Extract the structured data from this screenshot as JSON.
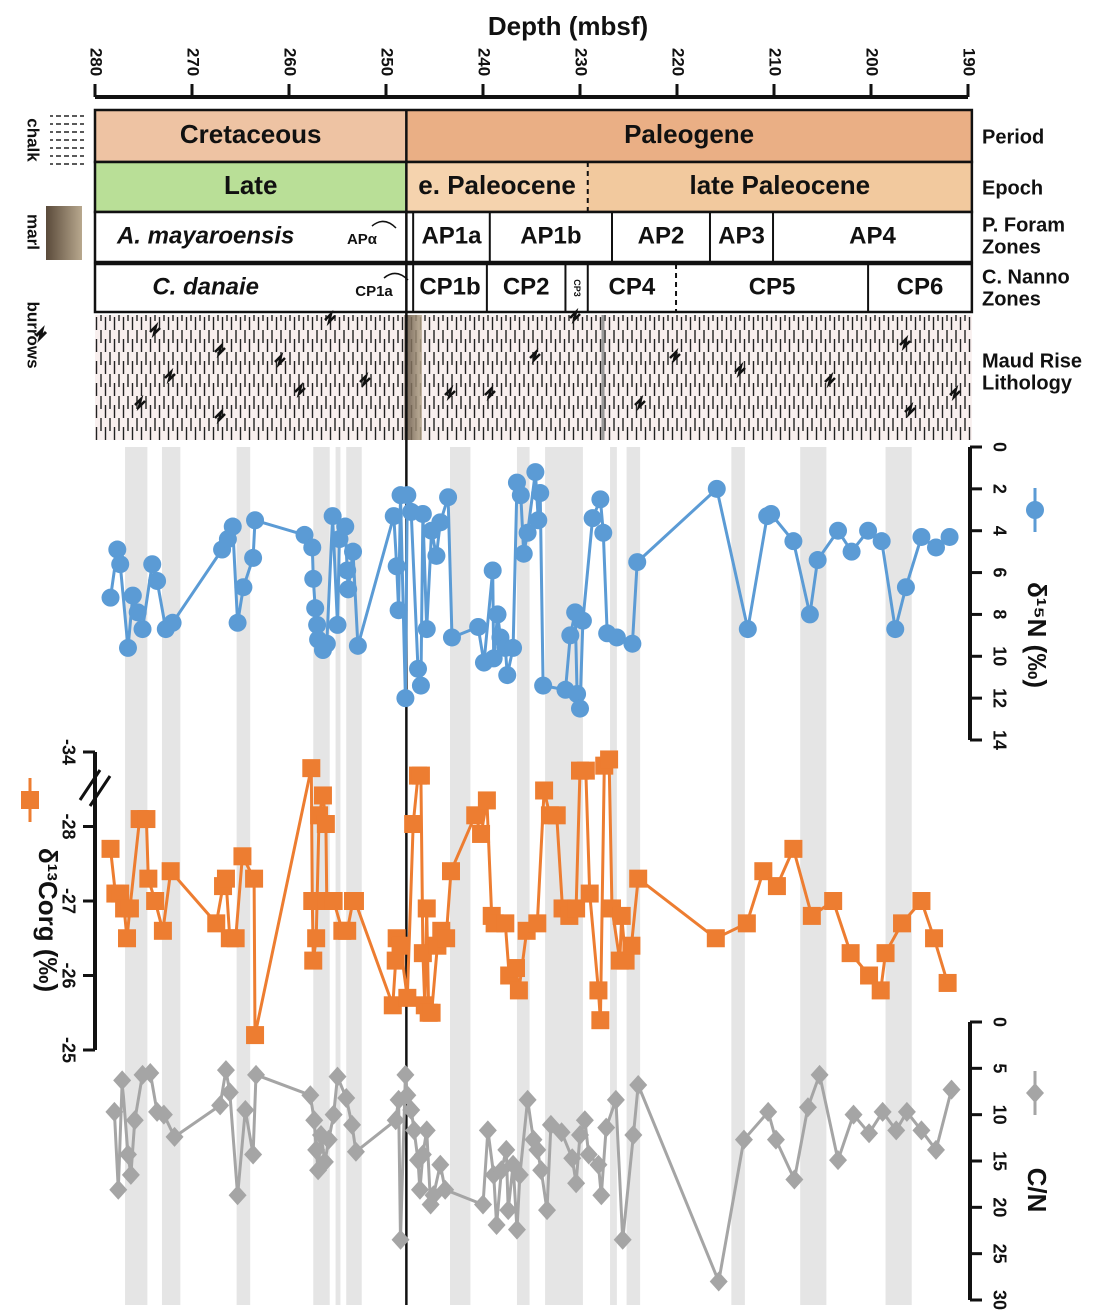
{
  "chart_data": {
    "type": "line",
    "xlabel": "Depth (mbsf)",
    "xlim": [
      280,
      190
    ],
    "xticks": [
      280,
      270,
      260,
      250,
      240,
      230,
      220,
      210,
      200,
      190
    ],
    "kpg_boundary": 247.9,
    "bands": [
      [
        276.9,
        274.6
      ],
      [
        273.1,
        271.2
      ],
      [
        265.4,
        264.0
      ],
      [
        257.5,
        255.8
      ],
      [
        255.2,
        254.7
      ],
      [
        254.1,
        252.5
      ],
      [
        243.4,
        241.3
      ],
      [
        236.5,
        235.2
      ],
      [
        233.6,
        229.7
      ],
      [
        226.9,
        226.2
      ],
      [
        225.2,
        223.8
      ],
      [
        214.4,
        213.0
      ],
      [
        207.3,
        204.6
      ],
      [
        198.5,
        195.8
      ]
    ],
    "lithology_key": [
      "chalk",
      "marl",
      "burrows"
    ],
    "strat_rows": [
      {
        "label": [
          "Period"
        ],
        "zones": [
          {
            "label": "Cretaceous",
            "from": 280,
            "to": 247.9,
            "color": "#eec3a3"
          },
          {
            "label": "Paleogene",
            "from": 247.9,
            "to": 189.6,
            "color": "#eaaf85"
          }
        ]
      },
      {
        "label": [
          "Epoch"
        ],
        "zones": [
          {
            "label": "Late",
            "from": 280,
            "to": 247.9,
            "color": "#b9df97"
          },
          {
            "label": "e. Paleocene",
            "from": 247.9,
            "to": 229.2,
            "color": "#f5d3ae"
          },
          {
            "label": "late Paleocene",
            "from": 229.2,
            "to": 189.6,
            "color": "#f2c99e",
            "dashed": true
          }
        ]
      },
      {
        "label": [
          "P. Foram",
          "Zones"
        ],
        "zones": [
          {
            "label": "A. mayaroensis",
            "from": 280,
            "to": 247.9,
            "italic": true
          },
          {
            "label": "AP1a",
            "from": 247.2,
            "to": 239.3
          },
          {
            "label": "AP1b",
            "from": 239.3,
            "to": 226.7
          },
          {
            "label": "AP2",
            "from": 226.7,
            "to": 216.6
          },
          {
            "label": "AP3",
            "from": 216.6,
            "to": 210.1
          },
          {
            "label": "AP4",
            "from": 210.1,
            "to": 189.6
          }
        ]
      },
      {
        "label": [
          "C. Nanno",
          "Zones"
        ],
        "zones": [
          {
            "label": "C. danaie",
            "from": 280,
            "to": 247.9,
            "italic": true
          },
          {
            "label": "CP1b",
            "from": 247.2,
            "to": 239.6
          },
          {
            "label": "CP2",
            "from": 239.6,
            "to": 231.5
          },
          {
            "label": "CP3",
            "from": 231.5,
            "to": 229.2,
            "small": true
          },
          {
            "label": "CP4",
            "from": 229.2,
            "to": 220.1
          },
          {
            "label": "CP5",
            "from": 220.1,
            "to": 200.3,
            "dashed": true
          },
          {
            "label": "CP6",
            "from": 200.3,
            "to": 189.6
          }
        ]
      }
    ],
    "strat_annotations": [
      "APα",
      "CP1a"
    ],
    "lithology": {
      "label": [
        "Maud Rise",
        "Lithology"
      ],
      "marl": [
        248.1,
        246.3
      ]
    },
    "series": [
      {
        "name": "δ¹⁵N (‰)",
        "color": "#5b9bd5",
        "marker": "circle",
        "ylim": [
          0,
          14
        ],
        "yticks": [
          0,
          2,
          4,
          6,
          8,
          10,
          12,
          14
        ],
        "x": [
          278.4,
          277.7,
          277.4,
          276.6,
          276.1,
          275.6,
          275.1,
          274.1,
          273.6,
          272.7,
          272.0,
          266.9,
          266.3,
          265.8,
          265.3,
          264.7,
          263.7,
          263.5,
          258.4,
          257.6,
          257.5,
          257.3,
          257.1,
          257.0,
          256.5,
          256.1,
          255.5,
          255.0,
          254.8,
          254.2,
          254.0,
          253.9,
          253.4,
          252.9,
          249.2,
          248.9,
          248.7,
          248.5,
          248.0,
          247.8,
          247.4,
          246.7,
          246.4,
          246.2,
          245.8,
          245.3,
          244.8,
          244.4,
          243.6,
          243.2,
          240.5,
          239.9,
          239.0,
          238.9,
          238.5,
          238.2,
          237.7,
          237.5,
          236.9,
          236.5,
          236.1,
          235.8,
          235.4,
          234.6,
          234.3,
          234.1,
          233.8,
          231.5,
          231.0,
          230.5,
          230.3,
          230.0,
          229.7,
          228.7,
          227.9,
          227.6,
          227.2,
          226.2,
          224.6,
          224.1,
          215.9,
          212.7,
          210.7,
          210.3,
          208.0,
          206.3,
          205.5,
          203.4,
          202.0,
          200.3,
          198.9,
          197.5,
          196.4,
          194.8,
          193.3,
          191.9
        ],
        "values": [
          7.2,
          4.9,
          5.6,
          9.6,
          7.1,
          7.9,
          8.7,
          5.6,
          6.4,
          8.7,
          8.4,
          4.9,
          4.4,
          3.8,
          8.4,
          6.7,
          5.3,
          3.5,
          4.2,
          4.8,
          6.3,
          7.7,
          8.5,
          9.2,
          9.7,
          9.4,
          3.3,
          8.5,
          4.4,
          3.8,
          5.9,
          6.8,
          5.0,
          9.5,
          3.3,
          5.7,
          7.8,
          2.3,
          12.0,
          2.3,
          3.1,
          10.6,
          11.4,
          3.2,
          8.7,
          4.0,
          5.2,
          3.6,
          2.4,
          9.1,
          8.6,
          10.3,
          5.9,
          10.1,
          8.0,
          9.1,
          9.6,
          10.9,
          9.6,
          1.7,
          2.3,
          5.1,
          4.1,
          1.2,
          3.5,
          2.2,
          11.4,
          11.6,
          9.0,
          7.9,
          11.8,
          12.5,
          8.3,
          3.4,
          2.5,
          4.1,
          8.9,
          9.1,
          9.4,
          5.5,
          2.0,
          8.7,
          3.3,
          3.2,
          4.5,
          8.0,
          5.4,
          4.0,
          5.0,
          4.0,
          4.5,
          8.7,
          6.7,
          4.3,
          4.8,
          4.3
        ]
      },
      {
        "name": "δ¹³Corg (‰)",
        "color": "#ed7d31",
        "marker": "square",
        "ylim": [
          -34,
          -25
        ],
        "yticks": [
          -34,
          -28,
          -27,
          -26,
          -25
        ],
        "axis_break": true,
        "x": [
          278.4,
          277.9,
          277.4,
          277.0,
          276.7,
          276.4,
          275.4,
          274.7,
          274.5,
          273.8,
          273.0,
          272.2,
          267.5,
          266.8,
          266.5,
          266.1,
          265.5,
          264.8,
          263.6,
          263.5,
          257.7,
          257.6,
          257.5,
          257.2,
          256.9,
          256.5,
          256.2,
          256.1,
          255.4,
          254.5,
          254.0,
          253.4,
          253.2,
          249.3,
          249.0,
          248.9,
          248.5,
          247.8,
          247.2,
          246.7,
          246.4,
          246.2,
          246.0,
          245.8,
          245.6,
          245.3,
          244.7,
          244.3,
          243.8,
          243.3,
          240.8,
          240.2,
          239.6,
          239.1,
          238.8,
          237.7,
          237.3,
          236.6,
          236.3,
          235.5,
          234.4,
          233.7,
          233.1,
          232.4,
          231.8,
          231.1,
          230.4,
          230.0,
          229.4,
          229.0,
          228.1,
          227.9,
          227.5,
          227.0,
          226.7,
          225.9,
          225.7,
          225.3,
          224.7,
          224.0,
          216.0,
          212.8,
          211.1,
          209.7,
          208.0,
          206.1,
          203.9,
          202.1,
          200.2,
          199.0,
          198.5,
          196.8,
          194.8,
          193.5,
          192.1
        ],
        "values": [
          -27.7,
          -27.1,
          -27.1,
          -26.9,
          -26.5,
          -26.9,
          -28.6,
          -28.6,
          -27.3,
          -27.0,
          -26.6,
          -27.4,
          -26.7,
          -27.2,
          -27.3,
          -26.5,
          -26.5,
          -27.6,
          -27.3,
          -25.2,
          -32.7,
          -27.0,
          -26.2,
          -26.5,
          -28.9,
          -30.5,
          -28.2,
          -27.0,
          -27.0,
          -26.6,
          -26.6,
          -27.0,
          -27.0,
          -25.6,
          -26.2,
          -26.5,
          -26.4,
          -25.7,
          -28.2,
          -32.1,
          -32.1,
          -26.3,
          -25.6,
          -26.9,
          -25.5,
          -25.5,
          -26.4,
          -26.6,
          -26.5,
          -27.4,
          -28.9,
          -27.9,
          -30.1,
          -26.8,
          -26.7,
          -26.7,
          -26.0,
          -26.1,
          -25.8,
          -26.6,
          -26.7,
          -30.9,
          -28.9,
          -28.9,
          -26.9,
          -26.8,
          -26.9,
          -32.5,
          -32.5,
          -27.1,
          -25.8,
          -25.4,
          -32.9,
          -33.4,
          -26.9,
          -26.2,
          -26.8,
          -26.2,
          -26.4,
          -27.3,
          -26.5,
          -26.7,
          -27.4,
          -27.2,
          -27.7,
          -26.8,
          -27.0,
          -26.3,
          -26.0,
          -25.8,
          -26.3,
          -26.7,
          -27.0,
          -26.5,
          -25.9
        ]
      },
      {
        "name": "C/N",
        "color": "#a5a5a5",
        "marker": "diamond",
        "ylim": [
          0,
          30
        ],
        "yticks": [
          0,
          5,
          10,
          15,
          20,
          25,
          30
        ],
        "x": [
          278.0,
          277.6,
          277.2,
          276.6,
          276.3,
          275.9,
          275.1,
          274.3,
          273.6,
          272.9,
          271.8,
          267.1,
          266.5,
          266.1,
          265.3,
          264.5,
          263.7,
          263.4,
          257.8,
          257.4,
          257.2,
          257.0,
          256.7,
          256.3,
          255.9,
          255.4,
          255.0,
          254.1,
          253.5,
          253.1,
          249.0,
          248.7,
          248.5,
          248.0,
          247.8,
          247.4,
          247.1,
          246.7,
          246.5,
          246.2,
          245.8,
          245.4,
          245.1,
          244.4,
          243.9,
          240.0,
          239.5,
          238.9,
          238.6,
          238.1,
          237.6,
          237.4,
          236.9,
          236.5,
          236.2,
          235.4,
          234.8,
          234.4,
          234.0,
          233.4,
          233.0,
          231.9,
          230.8,
          230.4,
          230.0,
          229.5,
          229.1,
          228.1,
          227.8,
          227.3,
          226.3,
          225.6,
          224.5,
          224.0,
          215.7,
          213.1,
          210.6,
          209.8,
          207.9,
          206.5,
          205.3,
          203.4,
          201.8,
          200.2,
          198.8,
          197.4,
          196.3,
          194.8,
          193.3,
          191.7
        ],
        "values": [
          9.7,
          18.1,
          6.3,
          14.3,
          16.5,
          10.6,
          5.7,
          5.5,
          9.7,
          10.0,
          12.4,
          9.0,
          5.2,
          7.6,
          18.7,
          9.5,
          14.3,
          5.7,
          7.9,
          10.6,
          13.8,
          16.0,
          12.2,
          15.1,
          12.7,
          10.0,
          5.9,
          8.2,
          11.1,
          14.0,
          10.6,
          8.4,
          23.5,
          5.7,
          7.9,
          9.5,
          11.7,
          14.9,
          18.1,
          14.3,
          11.7,
          19.7,
          18.7,
          15.4,
          18.1,
          19.7,
          11.7,
          16.5,
          21.9,
          16.0,
          13.8,
          20.3,
          15.4,
          22.4,
          16.5,
          8.4,
          12.7,
          13.8,
          16.0,
          20.3,
          11.1,
          11.9,
          14.7,
          17.4,
          12.2,
          10.6,
          14.3,
          15.4,
          18.7,
          11.4,
          8.4,
          23.5,
          12.2,
          6.8,
          28.0,
          12.7,
          9.7,
          12.7,
          17.0,
          9.2,
          5.7,
          14.9,
          10.0,
          12.0,
          9.7,
          11.7,
          9.7,
          11.7,
          13.8,
          7.3
        ]
      }
    ]
  }
}
